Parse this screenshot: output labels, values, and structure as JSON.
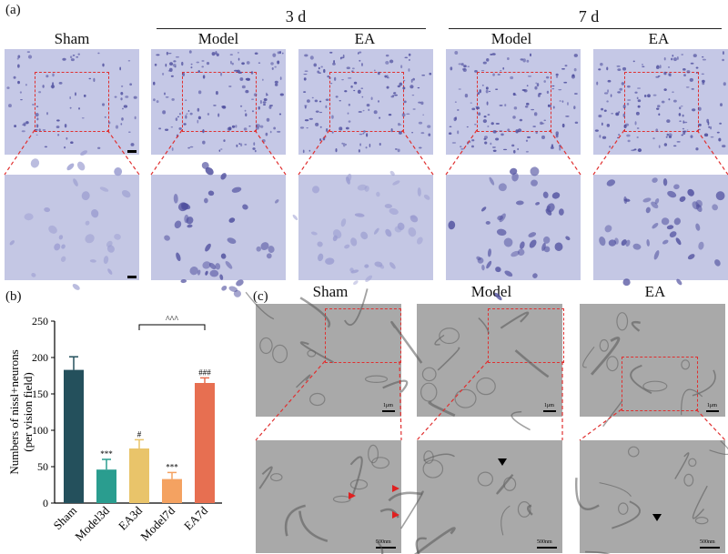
{
  "panels": {
    "a": {
      "letter": "(a)"
    },
    "b": {
      "letter": "(b)"
    },
    "c": {
      "letter": "(c)"
    }
  },
  "panel_a": {
    "timepoints": [
      "3 d",
      "7 d"
    ],
    "columns": [
      "Sham",
      "Model",
      "EA",
      "Model",
      "EA"
    ]
  },
  "panel_c": {
    "columns": [
      "Sham",
      "Model",
      "EA"
    ],
    "scale_top": "1μm",
    "scale_bottom": "500nm"
  },
  "chart_data": {
    "type": "bar",
    "ylabel": "Numbers of nissl+neurons\n(per vision field)",
    "categories": [
      "Sham",
      "Model3d",
      "EA3d",
      "Model7d",
      "EA7d"
    ],
    "values": [
      183,
      46,
      75,
      33,
      165
    ],
    "errors": [
      18,
      14,
      12,
      9,
      7
    ],
    "colors": [
      "#24505c",
      "#2a9d8f",
      "#e9c46a",
      "#f4a261",
      "#e76f51"
    ],
    "annotations": [
      "",
      "***",
      "#",
      "***",
      "###"
    ],
    "comparison": {
      "from": "EA3d",
      "to": "EA7d",
      "label": "^^^"
    },
    "ylim": [
      0,
      250
    ],
    "yticks": [
      0,
      50,
      100,
      150,
      200,
      250
    ]
  },
  "colors": {
    "nissl_background": "#c5c8e6",
    "nissl_cell": "#4f4f9e",
    "tem_background": "#a9a9a9",
    "zoom_box": "#e03030",
    "arrow_red": "#e02020",
    "arrow_black": "#000000"
  }
}
